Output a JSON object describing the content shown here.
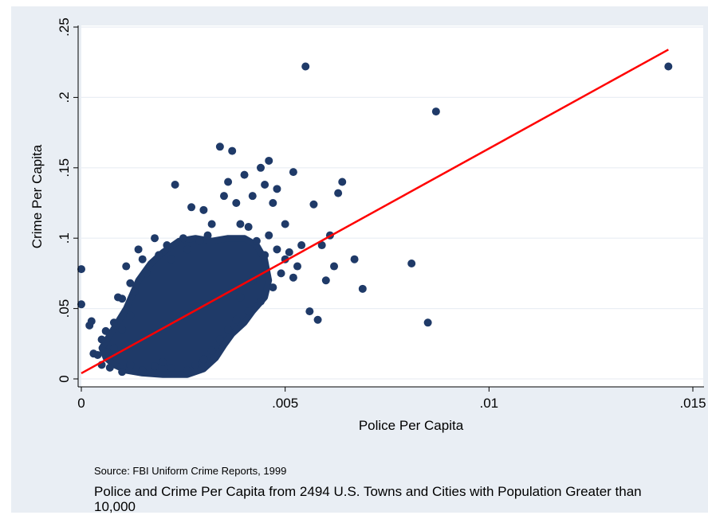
{
  "chart_data": {
    "type": "scatter",
    "title": "",
    "xlabel": "Police Per Capita",
    "ylabel": "Crime Per Capita",
    "xlim": [
      0,
      0.015
    ],
    "ylim": [
      0,
      0.25
    ],
    "x_ticks": [
      0,
      0.005,
      0.01,
      0.015
    ],
    "x_tick_labels": [
      "0",
      ".005",
      ".01",
      ".015"
    ],
    "y_ticks": [
      0,
      0.05,
      0.1,
      0.15,
      0.2,
      0.25
    ],
    "y_tick_labels": [
      "0",
      ".05",
      ".1",
      ".15",
      ".2",
      ".25"
    ],
    "grid": "horizontal",
    "marker_color": "#1f3a68",
    "line_color": "#ff0000",
    "series": [
      {
        "kind": "points",
        "points": [
          [
            0.0,
            0.078
          ],
          [
            0.0,
            0.053
          ],
          [
            0.0002,
            0.038
          ],
          [
            0.00025,
            0.041
          ],
          [
            0.0004,
            0.017
          ],
          [
            0.0005,
            0.028
          ],
          [
            0.0006,
            0.019
          ],
          [
            0.0008,
            0.022
          ],
          [
            0.0009,
            0.058
          ],
          [
            0.001,
            0.057
          ],
          [
            0.0011,
            0.08
          ],
          [
            0.0012,
            0.045
          ],
          [
            0.0014,
            0.092
          ],
          [
            0.0016,
            0.075
          ],
          [
            0.0018,
            0.1
          ],
          [
            0.0021,
            0.095
          ],
          [
            0.0023,
            0.138
          ],
          [
            0.0025,
            0.1
          ],
          [
            0.0027,
            0.122
          ],
          [
            0.003,
            0.12
          ],
          [
            0.0032,
            0.11
          ],
          [
            0.0034,
            0.165
          ],
          [
            0.0035,
            0.13
          ],
          [
            0.0036,
            0.14
          ],
          [
            0.0037,
            0.162
          ],
          [
            0.0038,
            0.125
          ],
          [
            0.0039,
            0.11
          ],
          [
            0.004,
            0.145
          ],
          [
            0.0041,
            0.108
          ],
          [
            0.0042,
            0.13
          ],
          [
            0.0044,
            0.15
          ],
          [
            0.0046,
            0.155
          ],
          [
            0.0045,
            0.138
          ],
          [
            0.0047,
            0.125
          ],
          [
            0.0048,
            0.135
          ],
          [
            0.005,
            0.11
          ],
          [
            0.0051,
            0.09
          ],
          [
            0.0052,
            0.147
          ],
          [
            0.0053,
            0.08
          ],
          [
            0.0054,
            0.095
          ],
          [
            0.0055,
            0.222
          ],
          [
            0.0057,
            0.124
          ],
          [
            0.0056,
            0.048
          ],
          [
            0.0058,
            0.042
          ],
          [
            0.0059,
            0.095
          ],
          [
            0.006,
            0.07
          ],
          [
            0.0061,
            0.102
          ],
          [
            0.0062,
            0.08
          ],
          [
            0.0063,
            0.132
          ],
          [
            0.0064,
            0.14
          ],
          [
            0.0067,
            0.085
          ],
          [
            0.0069,
            0.064
          ],
          [
            0.0081,
            0.082
          ],
          [
            0.0085,
            0.04
          ],
          [
            0.0087,
            0.19
          ],
          [
            0.0144,
            0.222
          ],
          [
            0.0043,
            0.098
          ],
          [
            0.0045,
            0.088
          ],
          [
            0.0049,
            0.075
          ],
          [
            0.0047,
            0.065
          ],
          [
            0.0044,
            0.055
          ],
          [
            0.0041,
            0.048
          ],
          [
            0.0038,
            0.042
          ],
          [
            0.0039,
            0.058
          ],
          [
            0.0042,
            0.07
          ],
          [
            0.0046,
            0.102
          ],
          [
            0.0048,
            0.092
          ],
          [
            0.005,
            0.085
          ],
          [
            0.0052,
            0.072
          ],
          [
            0.0036,
            0.035
          ],
          [
            0.0034,
            0.028
          ],
          [
            0.0032,
            0.02
          ],
          [
            0.003,
            0.014
          ],
          [
            0.0028,
            0.01
          ],
          [
            0.0026,
            0.006
          ],
          [
            0.0022,
            0.008
          ],
          [
            0.002,
            0.012
          ],
          [
            0.0018,
            0.009
          ],
          [
            0.0015,
            0.006
          ],
          [
            0.0012,
            0.01
          ],
          [
            0.001,
            0.005
          ],
          [
            0.0007,
            0.008
          ],
          [
            0.0005,
            0.01
          ],
          [
            0.0003,
            0.018
          ],
          [
            0.0006,
            0.034
          ],
          [
            0.0008,
            0.04
          ],
          [
            0.001,
            0.035
          ],
          [
            0.0012,
            0.068
          ],
          [
            0.0013,
            0.062
          ],
          [
            0.0015,
            0.085
          ],
          [
            0.0019,
            0.088
          ],
          [
            0.0022,
            0.085
          ],
          [
            0.0026,
            0.092
          ],
          [
            0.0029,
            0.098
          ],
          [
            0.0031,
            0.102
          ]
        ]
      },
      {
        "kind": "cluster",
        "comment_free": true,
        "polygon": [
          [
            0.0005,
            0.022
          ],
          [
            0.0008,
            0.036
          ],
          [
            0.0011,
            0.05
          ],
          [
            0.0014,
            0.07
          ],
          [
            0.0017,
            0.082
          ],
          [
            0.002,
            0.09
          ],
          [
            0.0024,
            0.098
          ],
          [
            0.0028,
            0.1
          ],
          [
            0.0032,
            0.098
          ],
          [
            0.0036,
            0.1
          ],
          [
            0.004,
            0.1
          ],
          [
            0.0043,
            0.095
          ],
          [
            0.0045,
            0.085
          ],
          [
            0.0046,
            0.07
          ],
          [
            0.0045,
            0.058
          ],
          [
            0.0042,
            0.048
          ],
          [
            0.004,
            0.04
          ],
          [
            0.0037,
            0.032
          ],
          [
            0.0035,
            0.024
          ],
          [
            0.0033,
            0.015
          ],
          [
            0.003,
            0.007
          ],
          [
            0.0026,
            0.003
          ],
          [
            0.002,
            0.003
          ],
          [
            0.0015,
            0.004
          ],
          [
            0.0011,
            0.006
          ],
          [
            0.0008,
            0.01
          ],
          [
            0.0006,
            0.015
          ]
        ]
      },
      {
        "kind": "fit_line",
        "x": [
          0.0,
          0.0144
        ],
        "y": [
          0.004,
          0.234
        ]
      }
    ]
  },
  "source_note": "Source: FBI Uniform Crime Reports, 1999",
  "caption": "Police and Crime Per Capita from 2494 U.S. Towns and Cities with Population Greater than 10,000"
}
